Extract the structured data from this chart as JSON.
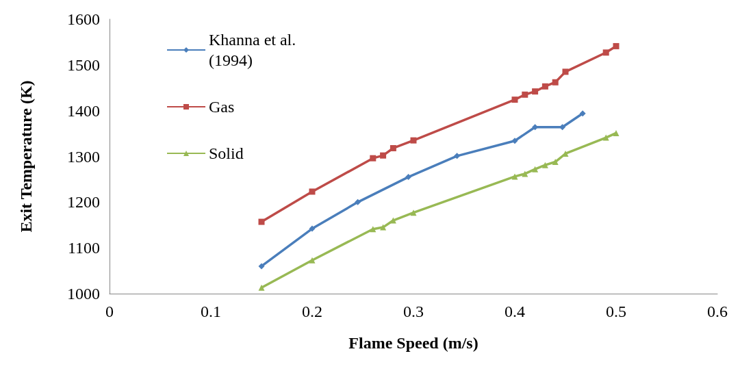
{
  "chart_data": {
    "type": "line",
    "xlabel": "Flame Speed (m/s)",
    "ylabel": "Exit Temperature (K)",
    "xlim": [
      0,
      0.6
    ],
    "xticks": [
      0,
      0.1,
      0.2,
      0.3,
      0.4,
      0.5,
      0.6
    ],
    "ylim": [
      1000,
      1600
    ],
    "yticks": [
      1000,
      1100,
      1200,
      1300,
      1400,
      1500,
      1600
    ],
    "grid": false,
    "legend": "top left",
    "line_style": "solid",
    "series": [
      {
        "name": "Khanna et al. (1994)",
        "color": "#4a7ebb",
        "marker": "diamond",
        "x": [
          0.15,
          0.2,
          0.245,
          0.295,
          0.343,
          0.4,
          0.42,
          0.447,
          0.467
        ],
        "values": [
          1060,
          1142,
          1200,
          1255,
          1301,
          1334,
          1364,
          1364,
          1394
        ]
      },
      {
        "name": "Gas",
        "color": "#be4b48",
        "marker": "square",
        "x": [
          0.15,
          0.2,
          0.26,
          0.27,
          0.28,
          0.3,
          0.4,
          0.41,
          0.42,
          0.43,
          0.44,
          0.45,
          0.49,
          0.5
        ],
        "values": [
          1157,
          1223,
          1296,
          1302,
          1318,
          1335,
          1424,
          1435,
          1442,
          1453,
          1462,
          1485,
          1527,
          1541
        ]
      },
      {
        "name": "Solid",
        "color": "#98b954",
        "marker": "triangle",
        "x": [
          0.15,
          0.2,
          0.26,
          0.27,
          0.28,
          0.3,
          0.4,
          0.41,
          0.42,
          0.43,
          0.44,
          0.45,
          0.49,
          0.5
        ],
        "values": [
          1013,
          1073,
          1141,
          1145,
          1160,
          1177,
          1256,
          1262,
          1272,
          1281,
          1288,
          1306,
          1341,
          1351
        ]
      }
    ]
  }
}
